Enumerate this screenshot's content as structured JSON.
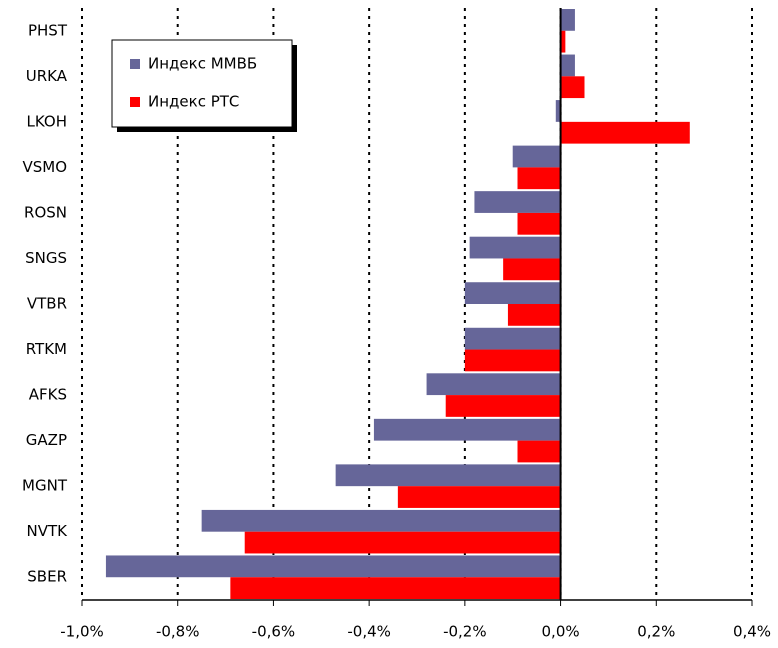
{
  "chart_data": {
    "type": "bar",
    "orientation": "horizontal",
    "categories": [
      "PHST",
      "URKA",
      "LKOH",
      "VSMO",
      "ROSN",
      "SNGS",
      "VTBR",
      "RTKM",
      "AFKS",
      "GAZP",
      "MGNT",
      "NVTK",
      "SBER"
    ],
    "series": [
      {
        "name": "Индекс ММВБ",
        "color": "#666699",
        "values": [
          0.03,
          0.03,
          -0.01,
          -0.1,
          -0.18,
          -0.19,
          -0.2,
          -0.2,
          -0.28,
          -0.39,
          -0.47,
          -0.75,
          -0.95
        ]
      },
      {
        "name": "Индекс РТС",
        "color": "#ff0000",
        "values": [
          0.01,
          0.05,
          0.27,
          -0.09,
          -0.09,
          -0.12,
          -0.11,
          -0.2,
          -0.24,
          -0.09,
          -0.34,
          -0.66,
          -0.69
        ]
      }
    ],
    "xlim": [
      -1.0,
      0.4
    ],
    "xticks": [
      {
        "value": -1.0,
        "label": "-1,0%"
      },
      {
        "value": -0.8,
        "label": "-0,8%"
      },
      {
        "value": -0.6,
        "label": "-0,6%"
      },
      {
        "value": -0.4,
        "label": "-0,4%"
      },
      {
        "value": -0.2,
        "label": "-0,2%"
      },
      {
        "value": 0.0,
        "label": "0,0%"
      },
      {
        "value": 0.2,
        "label": "0,2%"
      },
      {
        "value": 0.4,
        "label": "0,4%"
      }
    ],
    "grid": true,
    "legend": "top-left"
  }
}
